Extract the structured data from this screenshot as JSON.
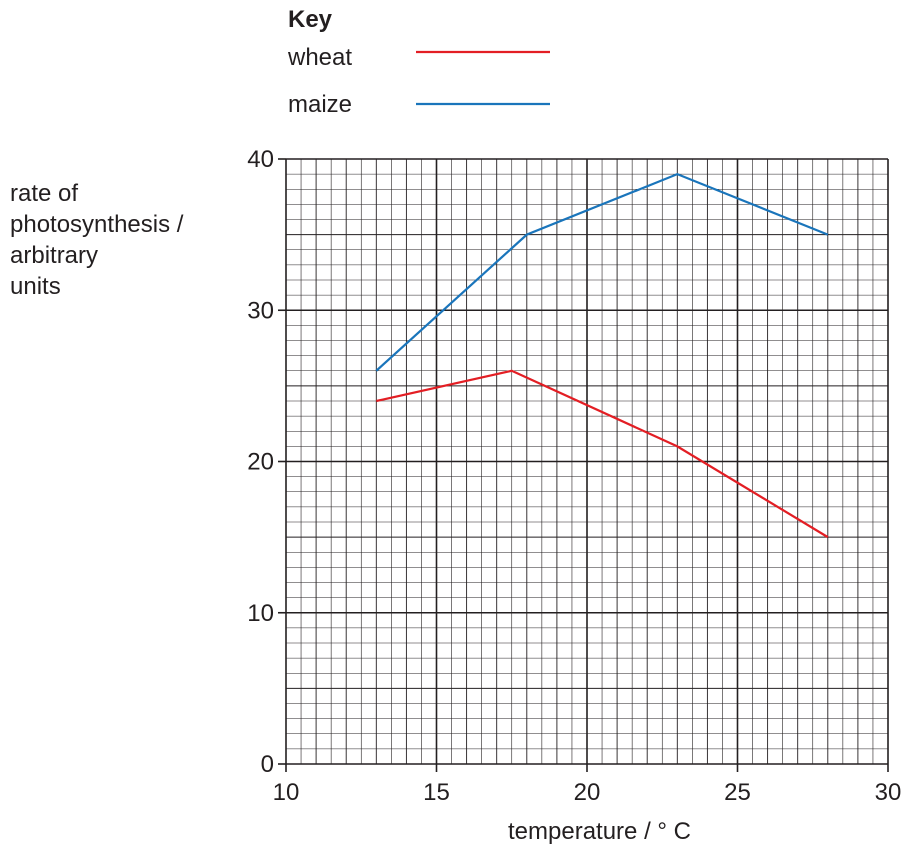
{
  "chart_data": {
    "type": "line",
    "key_title": "Key",
    "xlabel": "temperature / ° C",
    "ylabel_lines": [
      "rate of",
      "photosynthesis /",
      "arbitrary",
      "units"
    ],
    "xlim": [
      10,
      30
    ],
    "ylim": [
      0,
      40
    ],
    "x_ticks": [
      10,
      15,
      20,
      25,
      30
    ],
    "y_ticks": [
      0,
      10,
      20,
      30,
      40
    ],
    "grid": true,
    "legend_position": "top",
    "series": [
      {
        "name": "wheat",
        "color": "#e31e24",
        "x": [
          13,
          17.5,
          23,
          28
        ],
        "y": [
          24,
          26,
          21,
          15
        ]
      },
      {
        "name": "maize",
        "color": "#1a75bb",
        "x": [
          13,
          18,
          23,
          28
        ],
        "y": [
          26,
          35,
          39,
          35
        ]
      }
    ]
  }
}
